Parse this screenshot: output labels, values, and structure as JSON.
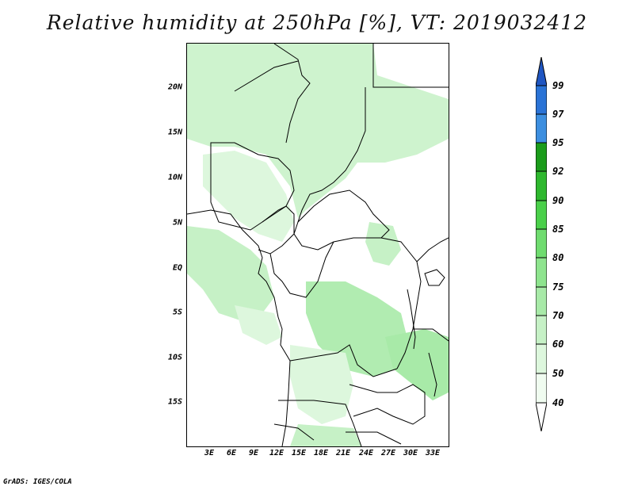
{
  "title": "Relative humidity at 250hPa [%], VT: 2019032412",
  "credit": "GrADS: IGES/COLA",
  "lat_labels": [
    "20N",
    "15N",
    "10N",
    "5N",
    "EQ",
    "5S",
    "10S",
    "15S"
  ],
  "lon_labels": [
    "3E",
    "6E",
    "9E",
    "12E",
    "15E",
    "18E",
    "21E",
    "24E",
    "27E",
    "30E",
    "33E"
  ],
  "colorbar": {
    "levels": [
      "40",
      "50",
      "60",
      "70",
      "75",
      "80",
      "85",
      "90",
      "92",
      "95",
      "97",
      "99"
    ],
    "colors": [
      "#f0fcf0",
      "#ddf7dd",
      "#c6f1c6",
      "#a8eaa8",
      "#8ee48e",
      "#6fdc6f",
      "#4ad04a",
      "#2eb82e",
      "#1b9c1b",
      "#3d8fe0",
      "#2a73d6",
      "#1f56c2"
    ]
  },
  "map": {
    "land_color": "#ffffff",
    "boundary_color": "#000000",
    "humidity_fill_colors": [
      "#c6f1c6",
      "#ddf7dd",
      "#a8eaa8"
    ]
  }
}
